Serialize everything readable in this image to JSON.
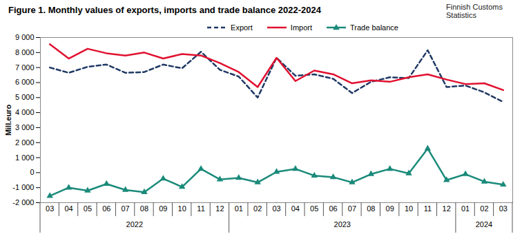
{
  "chart_data": {
    "type": "line",
    "title": "Figure 1. Monthly values of exports, imports and trade balance 2022-2024",
    "source": "Finnish Customs Statistics",
    "y_label": "Mill.euro",
    "categories": [
      "03",
      "04",
      "05",
      "06",
      "07",
      "08",
      "09",
      "10",
      "11",
      "12",
      "01",
      "02",
      "03",
      "04",
      "05",
      "06",
      "07",
      "08",
      "09",
      "10",
      "11",
      "12",
      "01",
      "02",
      "03"
    ],
    "category_groups": [
      {
        "label": "2022",
        "count": 10
      },
      {
        "label": "2023",
        "count": 12
      },
      {
        "label": "2024",
        "count": 3
      }
    ],
    "series": [
      {
        "name": "Export",
        "color": "#1f3864",
        "line_style": "dashed",
        "values": [
          7000,
          6650,
          7050,
          7200,
          6650,
          6700,
          7200,
          6950,
          8050,
          6850,
          6400,
          5000,
          7650,
          6450,
          6550,
          6250,
          5300,
          6050,
          6350,
          6300,
          8150,
          5700,
          5800,
          5350,
          4700
        ]
      },
      {
        "name": "Import",
        "color": "#e0102f",
        "line_style": "solid",
        "values": [
          8550,
          7600,
          8250,
          7950,
          7800,
          8000,
          7600,
          7900,
          7800,
          7300,
          6700,
          5700,
          7650,
          6100,
          6800,
          6550,
          5950,
          6150,
          6050,
          6350,
          6550,
          6200,
          5900,
          5950,
          5500
        ]
      },
      {
        "name": "Trade balance",
        "color": "#1a8a7a",
        "line_style": "solid",
        "marker": "triangle",
        "values": [
          -1550,
          -1000,
          -1200,
          -750,
          -1150,
          -1300,
          -400,
          -950,
          250,
          -450,
          -350,
          -650,
          50,
          250,
          -200,
          -300,
          -650,
          -100,
          250,
          -50,
          1600,
          -500,
          -100,
          -600,
          -800
        ]
      }
    ],
    "ylim": [
      -2000,
      9000
    ],
    "yticks": [
      {
        "value": -2000,
        "label": "-2 000"
      },
      {
        "value": -1000,
        "label": "-1 000"
      },
      0,
      {
        "value": 1000,
        "label": "1 000"
      },
      {
        "value": 2000,
        "label": "2 000"
      },
      {
        "value": 3000,
        "label": "3 000"
      },
      {
        "value": 4000,
        "label": "4 000"
      },
      {
        "value": 5000,
        "label": "5 000"
      },
      {
        "value": 6000,
        "label": "6 000"
      },
      {
        "value": 7000,
        "label": "7 000"
      },
      {
        "value": 8000,
        "label": "8 000"
      },
      {
        "value": 9000,
        "label": "9 000"
      }
    ],
    "grid": false,
    "legend": "top"
  }
}
